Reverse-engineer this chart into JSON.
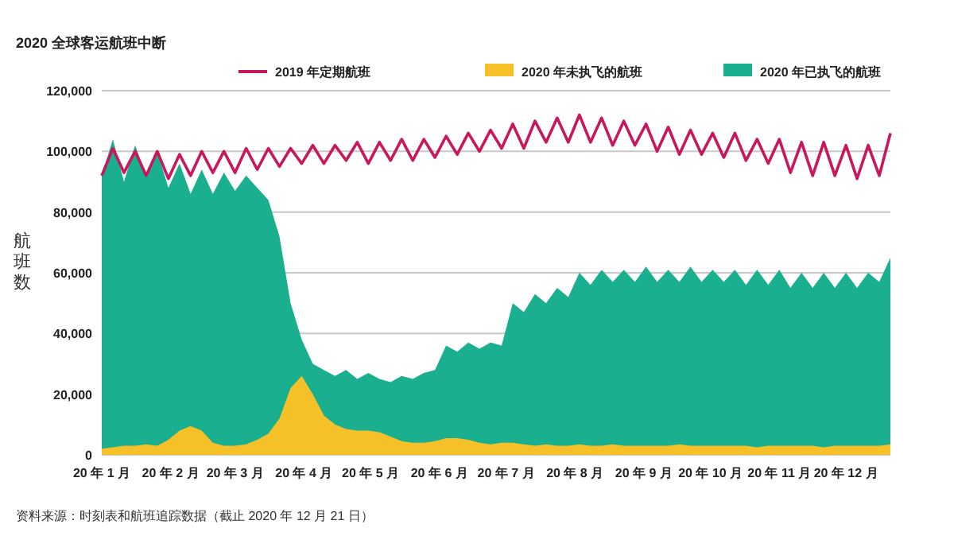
{
  "chart_data": {
    "type": "area",
    "title": "2020 全球客运航班中断",
    "ylabel": "航班数",
    "annotations": [
      "资料来源：时刻表和航班追踪数据（截止 2020 年 12 月 21 日）"
    ],
    "x": [
      "2020-01-01",
      "2020-01-06",
      "2020-01-11",
      "2020-01-16",
      "2020-01-21",
      "2020-01-26",
      "2020-01-31",
      "2020-02-05",
      "2020-02-10",
      "2020-02-15",
      "2020-02-20",
      "2020-02-25",
      "2020-03-01",
      "2020-03-06",
      "2020-03-11",
      "2020-03-16",
      "2020-03-21",
      "2020-03-26",
      "2020-03-31",
      "2020-04-05",
      "2020-04-10",
      "2020-04-15",
      "2020-04-20",
      "2020-04-25",
      "2020-04-30",
      "2020-05-05",
      "2020-05-10",
      "2020-05-15",
      "2020-05-20",
      "2020-05-25",
      "2020-05-30",
      "2020-06-04",
      "2020-06-09",
      "2020-06-14",
      "2020-06-19",
      "2020-06-24",
      "2020-06-29",
      "2020-07-04",
      "2020-07-09",
      "2020-07-14",
      "2020-07-19",
      "2020-07-24",
      "2020-07-29",
      "2020-08-03",
      "2020-08-08",
      "2020-08-13",
      "2020-08-18",
      "2020-08-23",
      "2020-08-28",
      "2020-09-02",
      "2020-09-07",
      "2020-09-12",
      "2020-09-17",
      "2020-09-22",
      "2020-09-27",
      "2020-10-02",
      "2020-10-07",
      "2020-10-12",
      "2020-10-17",
      "2020-10-22",
      "2020-10-27",
      "2020-11-01",
      "2020-11-06",
      "2020-11-11",
      "2020-11-16",
      "2020-11-21",
      "2020-11-26",
      "2020-12-01",
      "2020-12-06",
      "2020-12-11",
      "2020-12-16",
      "2020-12-21"
    ],
    "series": [
      {
        "name": "2020 年已执飞的航班",
        "type": "area",
        "color": "#1aaf8e",
        "values": [
          92000,
          104000,
          90000,
          102000,
          92000,
          100000,
          88000,
          96000,
          86000,
          94000,
          86000,
          93000,
          87000,
          92000,
          88000,
          84000,
          72000,
          50000,
          38000,
          30000,
          28000,
          26000,
          28000,
          25000,
          27000,
          25000,
          24000,
          26000,
          25000,
          27000,
          28000,
          36000,
          34000,
          37000,
          35000,
          37000,
          36000,
          50000,
          47000,
          53000,
          50000,
          55000,
          52000,
          60000,
          56000,
          61000,
          57000,
          61000,
          57000,
          62000,
          57000,
          61000,
          57000,
          62000,
          57000,
          61000,
          57000,
          61000,
          56000,
          61000,
          56000,
          61000,
          55000,
          60000,
          55000,
          60000,
          55000,
          60000,
          55000,
          60000,
          57000,
          65000
        ]
      },
      {
        "name": "2020 年未执飞的航班",
        "type": "area",
        "color": "#f5c028",
        "values": [
          2000,
          2500,
          3000,
          3000,
          3500,
          3000,
          5000,
          8000,
          9500,
          8000,
          4000,
          3000,
          3000,
          3500,
          5000,
          7000,
          12000,
          22000,
          26000,
          20000,
          13000,
          10000,
          8500,
          8000,
          8000,
          7500,
          6000,
          4500,
          4000,
          4000,
          4500,
          5500,
          5500,
          5000,
          4000,
          3500,
          4000,
          4000,
          3500,
          3000,
          3500,
          3000,
          3000,
          3500,
          3000,
          3000,
          3500,
          3000,
          3000,
          3000,
          3000,
          3000,
          3500,
          3000,
          3000,
          3000,
          3000,
          3000,
          3000,
          2500,
          3000,
          3000,
          3000,
          3000,
          3000,
          2500,
          3000,
          3000,
          3000,
          3000,
          3000,
          3500
        ]
      },
      {
        "name": "2019 年定期航班",
        "type": "line",
        "color": "#c8175d",
        "values": [
          92000,
          101000,
          93000,
          100000,
          92000,
          100000,
          91000,
          99000,
          92000,
          100000,
          93000,
          100000,
          93000,
          101000,
          94000,
          101000,
          95000,
          101000,
          96000,
          102000,
          96000,
          102000,
          97000,
          103000,
          96000,
          103000,
          97000,
          104000,
          97000,
          104000,
          98000,
          105000,
          99000,
          106000,
          100000,
          107000,
          101000,
          109000,
          101000,
          110000,
          103000,
          111000,
          103000,
          112000,
          103000,
          111000,
          102000,
          110000,
          102000,
          109000,
          100000,
          108000,
          99000,
          107000,
          99000,
          106000,
          98000,
          106000,
          97000,
          104000,
          96000,
          104000,
          93000,
          103000,
          92000,
          103000,
          92000,
          102000,
          91000,
          102000,
          92000,
          106000
        ]
      }
    ],
    "xlim": [
      "2020-01-01",
      "2020-12-21"
    ],
    "xticks": [
      {
        "value": "2020-01-01",
        "label": "20 年 1 月"
      },
      {
        "value": "2020-02-01",
        "label": "20 年 2 月"
      },
      {
        "value": "2020-03-01",
        "label": "20 年 3 月"
      },
      {
        "value": "2020-04-01",
        "label": "20 年 4 月"
      },
      {
        "value": "2020-05-01",
        "label": "20 年 5 月"
      },
      {
        "value": "2020-06-01",
        "label": "20 年 6 月"
      },
      {
        "value": "2020-07-01",
        "label": "20 年 7 月"
      },
      {
        "value": "2020-08-01",
        "label": "20 年 8 月"
      },
      {
        "value": "2020-09-01",
        "label": "20 年 9 月"
      },
      {
        "value": "2020-10-01",
        "label": "20 年 10 月"
      },
      {
        "value": "2020-11-01",
        "label": "20 年 11 月"
      },
      {
        "value": "2020-12-01",
        "label": "20 年 12 月"
      }
    ],
    "ylim": [
      0,
      120000
    ],
    "yticks": [
      {
        "value": 0,
        "label": "0"
      },
      {
        "value": 20000,
        "label": "20,000"
      },
      {
        "value": 40000,
        "label": "40,000"
      },
      {
        "value": 60000,
        "label": "60,000"
      },
      {
        "value": 80000,
        "label": "80,000"
      },
      {
        "value": 100000,
        "label": "100,000"
      },
      {
        "value": 120000,
        "label": "120,000"
      }
    ],
    "grid": "y",
    "legend": "top"
  }
}
